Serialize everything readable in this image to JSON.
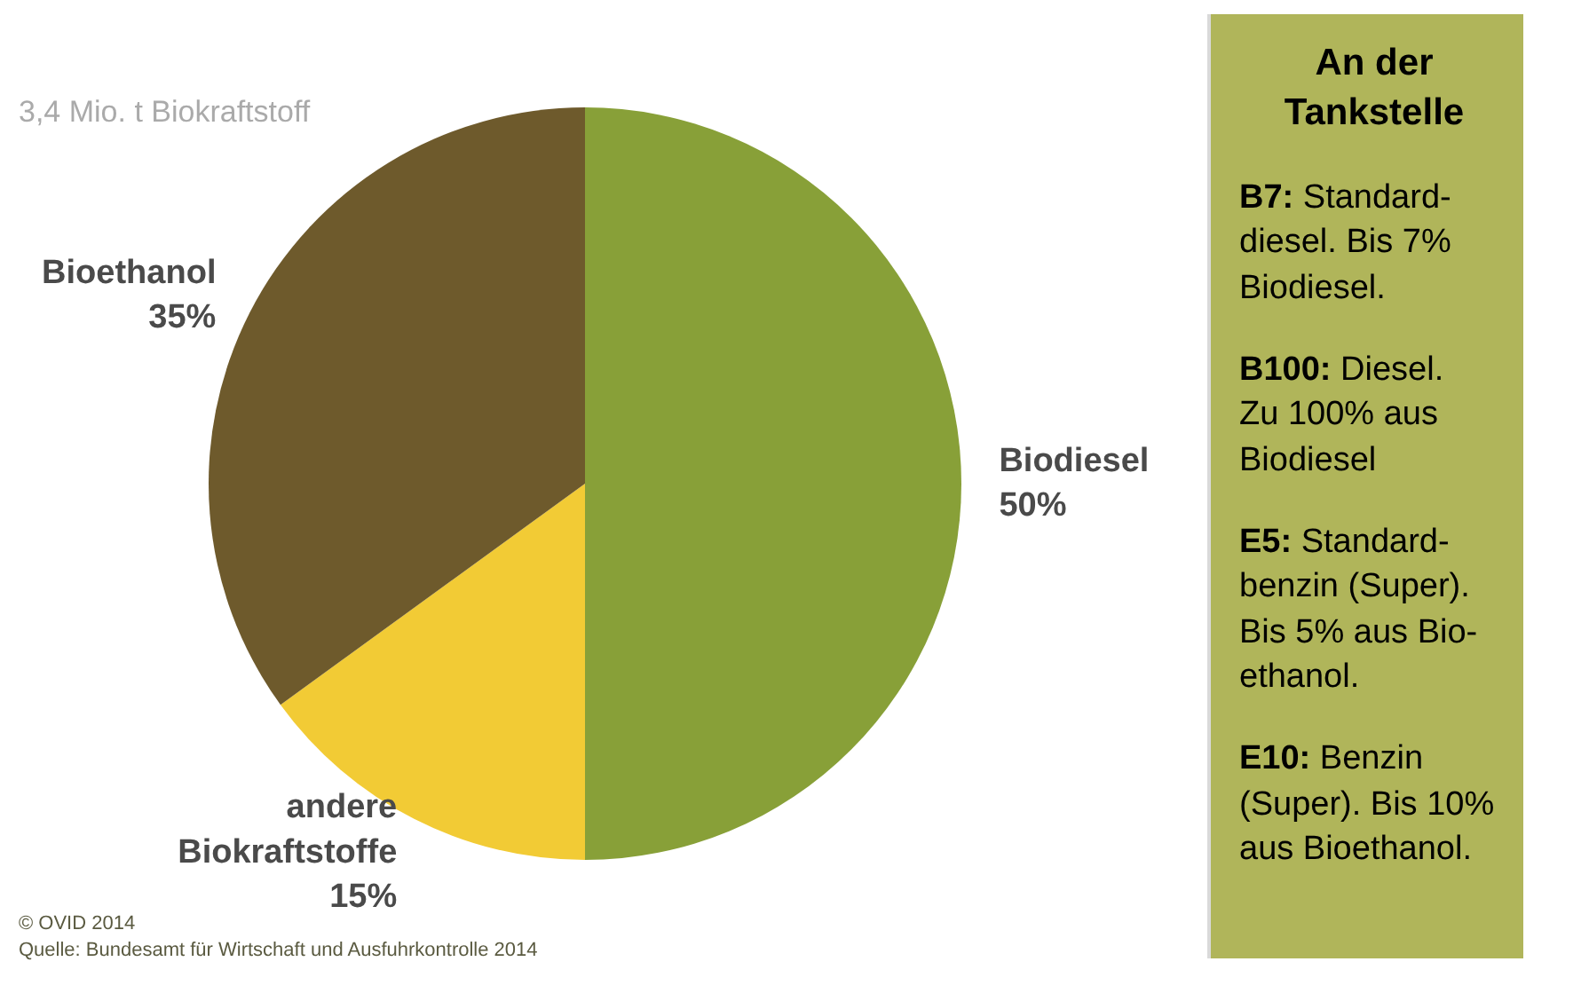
{
  "chart_data": [
    {
      "type": "pie",
      "title": "3,4 Mio. t Biokraftstoff",
      "categories": [
        "Biodiesel",
        "andere\nBiokraftstoffe",
        "Bioethanol"
      ],
      "values": [
        50,
        15,
        35
      ],
      "value_labels": [
        "50%",
        "15%",
        "35%"
      ],
      "colors": [
        "#88a038",
        "#f2cb35",
        "#6e5a2c"
      ],
      "annotations": [
        "© OVID 2014",
        "Quelle: Bundesamt für Wirtschaft und Ausfuhrkontrolle 2014"
      ]
    },
    {
      "type": "other",
      "title": "An der\nTankstelle",
      "annotations": [
        "B7: Standard-\ndiesel. Bis 7%\nBiodiesel.",
        "B100: Diesel.\nZu 100% aus\nBiodiesel",
        "E5: Standard-\nbenzin (Super).\nBis 5% aus Bio-\nethanol.",
        "E10: Benzin\n(Super). Bis 10%\naus Bioethanol."
      ]
    }
  ]
}
